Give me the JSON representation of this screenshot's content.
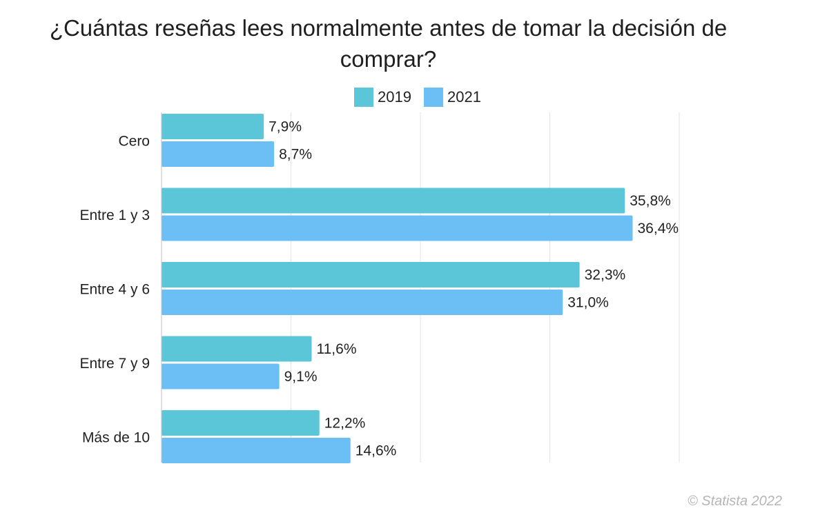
{
  "title": "¿Cuántas reseñas lees normalmente antes de tomar la decisión de comprar?",
  "footer": "© Statista 2022",
  "colors": {
    "s2019": "#5cc6d9",
    "s2021": "#6bbff5",
    "grid": "#e3e3e3",
    "axis": "#bfbfbf"
  },
  "chart_data": {
    "type": "bar",
    "orientation": "horizontal",
    "title": "¿Cuántas reseñas lees normalmente antes de tomar la decisión de comprar?",
    "categories": [
      "Cero",
      "Entre 1 y 3",
      "Entre 4 y 6",
      "Entre 7 y 9",
      "Más de 10"
    ],
    "series": [
      {
        "name": "2019",
        "values": [
          7.9,
          35.8,
          32.3,
          11.6,
          12.2
        ],
        "labels": [
          "7,9%",
          "35,8%",
          "32,3%",
          "11,6%",
          "12,2%"
        ]
      },
      {
        "name": "2021",
        "values": [
          8.7,
          36.4,
          31.0,
          9.1,
          14.6
        ],
        "labels": [
          "8,7%",
          "36,4%",
          "31,0%",
          "9,1%",
          "14,6%"
        ]
      }
    ],
    "xlim": [
      0,
      40
    ],
    "grid": true,
    "legend": "top-center"
  }
}
